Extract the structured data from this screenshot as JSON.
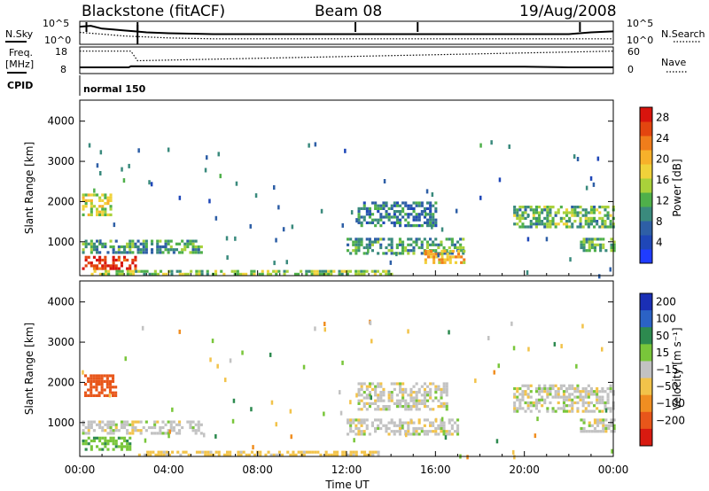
{
  "header": {
    "station": "Blackstone (fitACF)",
    "beam": "Beam 08",
    "date": "19/Aug/2008"
  },
  "chart_data": [
    {
      "type": "line",
      "panel": "noise",
      "left_label": "N.Sky",
      "right_label": "N.Search",
      "left_ticks": [
        "10^5",
        "10^0"
      ],
      "right_ticks": [
        "10^5",
        "10^0"
      ],
      "series": [
        {
          "name": "N.Sky",
          "style": "solid",
          "x": [
            0,
            0.5,
            1,
            1.5,
            2,
            2.5,
            3,
            4,
            6,
            8,
            10,
            12,
            14,
            16,
            18,
            20,
            22,
            23,
            24
          ],
          "y": [
            0.85,
            0.9,
            0.75,
            0.7,
            0.65,
            0.6,
            0.55,
            0.5,
            0.45,
            0.45,
            0.45,
            0.45,
            0.45,
            0.45,
            0.45,
            0.45,
            0.45,
            0.55,
            0.6
          ]
        },
        {
          "name": "N.Search",
          "style": "dotted",
          "x": [
            0,
            1,
            2,
            3,
            4,
            6,
            8,
            10,
            12,
            14,
            16,
            18,
            20,
            22,
            24
          ],
          "y": [
            0.55,
            0.45,
            0.35,
            0.3,
            0.25,
            0.2,
            0.2,
            0.2,
            0.2,
            0.2,
            0.2,
            0.2,
            0.2,
            0.2,
            0.2
          ]
        }
      ]
    },
    {
      "type": "line",
      "panel": "frequency",
      "left_label_1": "Freq.",
      "left_label_2": "[MHz]",
      "right_label": "Nave",
      "left_ticks": [
        "18",
        "8"
      ],
      "right_ticks": [
        "60",
        "0"
      ],
      "series": [
        {
          "name": "Freq",
          "style": "solid",
          "x": [
            0,
            2.2,
            2.3,
            8,
            12,
            16,
            18,
            20,
            22,
            24
          ],
          "y": [
            10,
            10,
            10.5,
            10.3,
            10.3,
            10.3,
            10.3,
            10.3,
            10,
            10
          ]
        },
        {
          "name": "Nave",
          "style": "dotted",
          "x": [
            0,
            2.3,
            2.6,
            24
          ],
          "y": [
            56,
            56,
            30,
            56
          ]
        }
      ]
    },
    {
      "type": "table",
      "panel": "cpid",
      "label": "CPID",
      "value": "normal 150"
    },
    {
      "type": "heatmap",
      "panel": "power",
      "ylabel": "Slant Range [km]",
      "xlabel": "",
      "ylim": [
        180,
        4500
      ],
      "xlim": [
        0,
        24
      ],
      "yticks": [
        "1000",
        "2000",
        "3000",
        "4000"
      ],
      "colorbar": {
        "label": "Power [dB]",
        "ticks": [
          "4",
          "8",
          "12",
          "16",
          "20",
          "24",
          "28"
        ],
        "range": [
          0,
          30
        ]
      },
      "regions": [
        {
          "x": [
            0.1,
            1.4
          ],
          "y": [
            1650,
            2200
          ],
          "level": 16
        },
        {
          "x": [
            0.1,
            2.5
          ],
          "y": [
            350,
            650
          ],
          "level": 28
        },
        {
          "x": [
            0.1,
            5.5
          ],
          "y": [
            750,
            1050
          ],
          "level": 10
        },
        {
          "x": [
            0.5,
            14.0
          ],
          "y": [
            180,
            300
          ],
          "level": 14
        },
        {
          "x": [
            12.5,
            16.0
          ],
          "y": [
            1400,
            2000
          ],
          "level": 8
        },
        {
          "x": [
            12.0,
            17.2
          ],
          "y": [
            700,
            1100
          ],
          "level": 10
        },
        {
          "x": [
            15.5,
            17.3
          ],
          "y": [
            450,
            800
          ],
          "level": 20
        },
        {
          "x": [
            19.5,
            24.0
          ],
          "y": [
            1350,
            1900
          ],
          "level": 12
        },
        {
          "x": [
            22.5,
            24.0
          ],
          "y": [
            800,
            1100
          ],
          "level": 12
        }
      ]
    },
    {
      "type": "heatmap",
      "panel": "velocity",
      "ylabel": "Slant Range [km]",
      "xlabel": "Time UT",
      "ylim": [
        180,
        4500
      ],
      "xlim": [
        0,
        24
      ],
      "xticks": [
        "00:00",
        "04:00",
        "08:00",
        "12:00",
        "16:00",
        "20:00",
        "00:00"
      ],
      "yticks": [
        "1000",
        "2000",
        "3000",
        "4000"
      ],
      "colorbar": {
        "label": "Velocity [m s⁻¹]",
        "ticks": [
          "200",
          "100",
          "50",
          "15",
          "−15",
          "−50",
          "−100",
          "−200"
        ]
      },
      "regions": [
        {
          "x": [
            0.2,
            1.6
          ],
          "y": [
            1700,
            2200
          ],
          "level": -120
        },
        {
          "x": [
            0.1,
            5.5
          ],
          "y": [
            750,
            1050
          ],
          "level": 0
        },
        {
          "x": [
            0.1,
            2.3
          ],
          "y": [
            350,
            650
          ],
          "level": 40
        },
        {
          "x": [
            2.5,
            13.5
          ],
          "y": [
            180,
            300
          ],
          "level": -30
        },
        {
          "x": [
            12.5,
            16.5
          ],
          "y": [
            1300,
            2000
          ],
          "level": 0
        },
        {
          "x": [
            12.0,
            17.0
          ],
          "y": [
            700,
            1100
          ],
          "level": 0
        },
        {
          "x": [
            19.5,
            24.0
          ],
          "y": [
            1300,
            1950
          ],
          "level": 0
        },
        {
          "x": [
            22.5,
            24.0
          ],
          "y": [
            750,
            1100
          ],
          "level": 0
        }
      ]
    }
  ]
}
